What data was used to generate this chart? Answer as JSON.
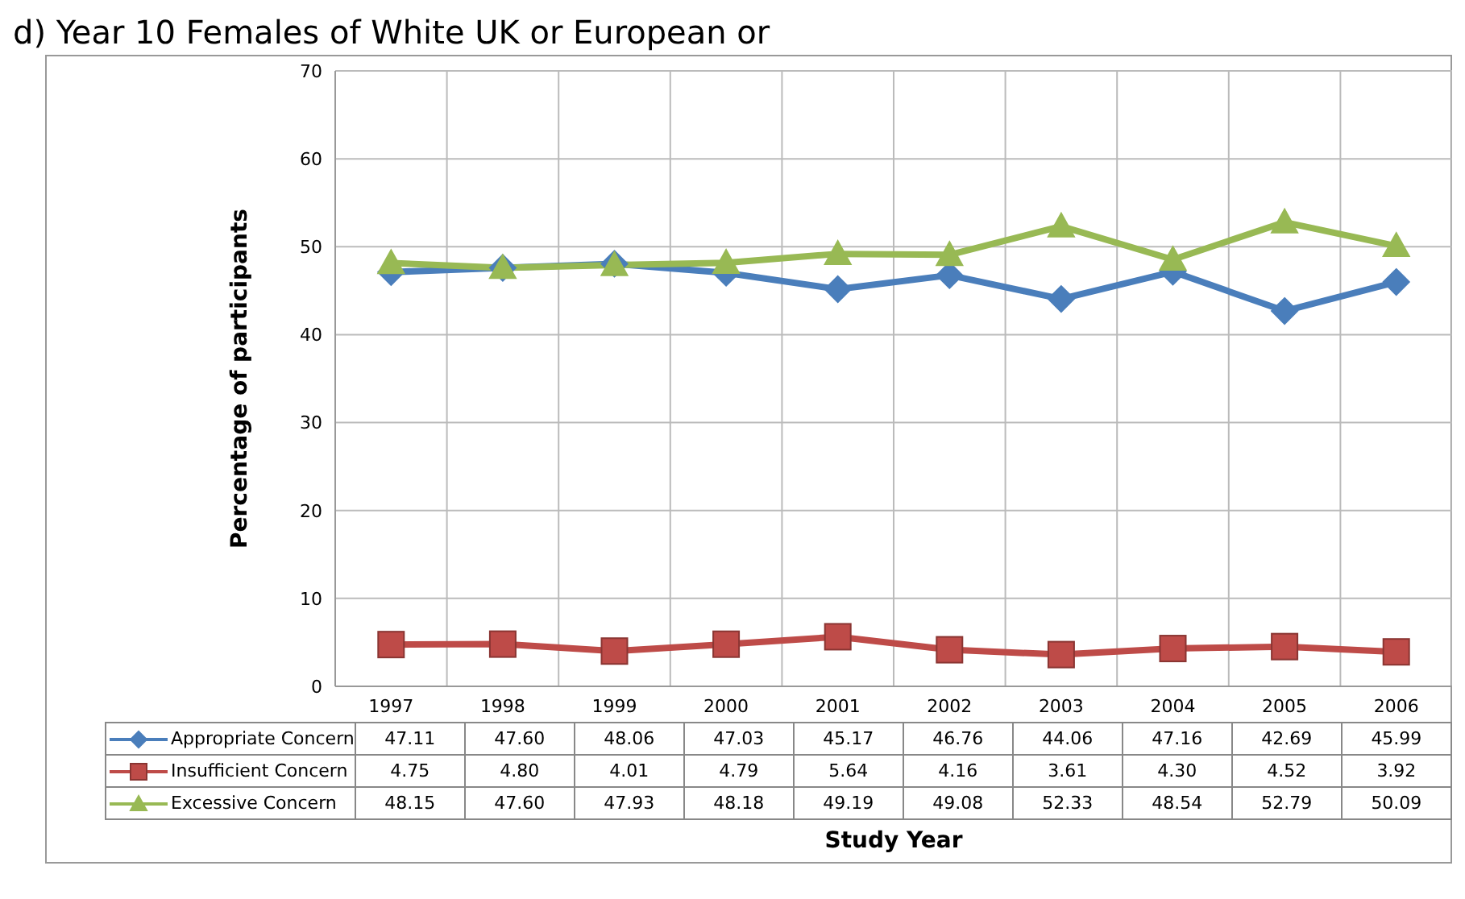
{
  "chart_data": {
    "type": "line",
    "title": "d) Year 10 Females of White UK or European or",
    "ylabel": "Percentage of participants",
    "annotations": [
      "Study Year"
    ],
    "categories": [
      "1997",
      "1998",
      "1999",
      "2000",
      "2001",
      "2002",
      "2003",
      "2004",
      "2005",
      "2006"
    ],
    "series": [
      {
        "name": "Appropriate Concern",
        "color": "#4a7ebb",
        "marker": "diamond",
        "values": [
          47.11,
          47.6,
          48.06,
          47.03,
          45.17,
          46.76,
          44.06,
          47.16,
          42.69,
          45.99
        ],
        "value_labels": [
          "47.11",
          "47.60",
          "48.06",
          "47.03",
          "45.17",
          "46.76",
          "44.06",
          "47.16",
          "42.69",
          "45.99"
        ]
      },
      {
        "name": "Insufficient Concern",
        "color": "#be4b48",
        "marker": "square",
        "values": [
          4.75,
          4.8,
          4.01,
          4.79,
          5.64,
          4.16,
          3.61,
          4.3,
          4.52,
          3.92
        ],
        "value_labels": [
          "4.75",
          "4.80",
          "4.01",
          "4.79",
          "5.64",
          "4.16",
          "3.61",
          "4.30",
          "4.52",
          "3.92"
        ]
      },
      {
        "name": "Excessive Concern",
        "color": "#98b954",
        "marker": "triangle",
        "values": [
          48.15,
          47.6,
          47.93,
          48.18,
          49.19,
          49.08,
          52.33,
          48.54,
          52.79,
          50.09
        ],
        "value_labels": [
          "48.15",
          "47.60",
          "47.93",
          "48.18",
          "49.19",
          "49.08",
          "52.33",
          "48.54",
          "52.79",
          "50.09"
        ]
      }
    ],
    "ylim": [
      0,
      70
    ],
    "yticks": [
      0,
      10,
      20,
      30,
      40,
      50,
      60,
      70
    ],
    "grid": true,
    "legend": "bottom left",
    "line_style": "solid"
  }
}
